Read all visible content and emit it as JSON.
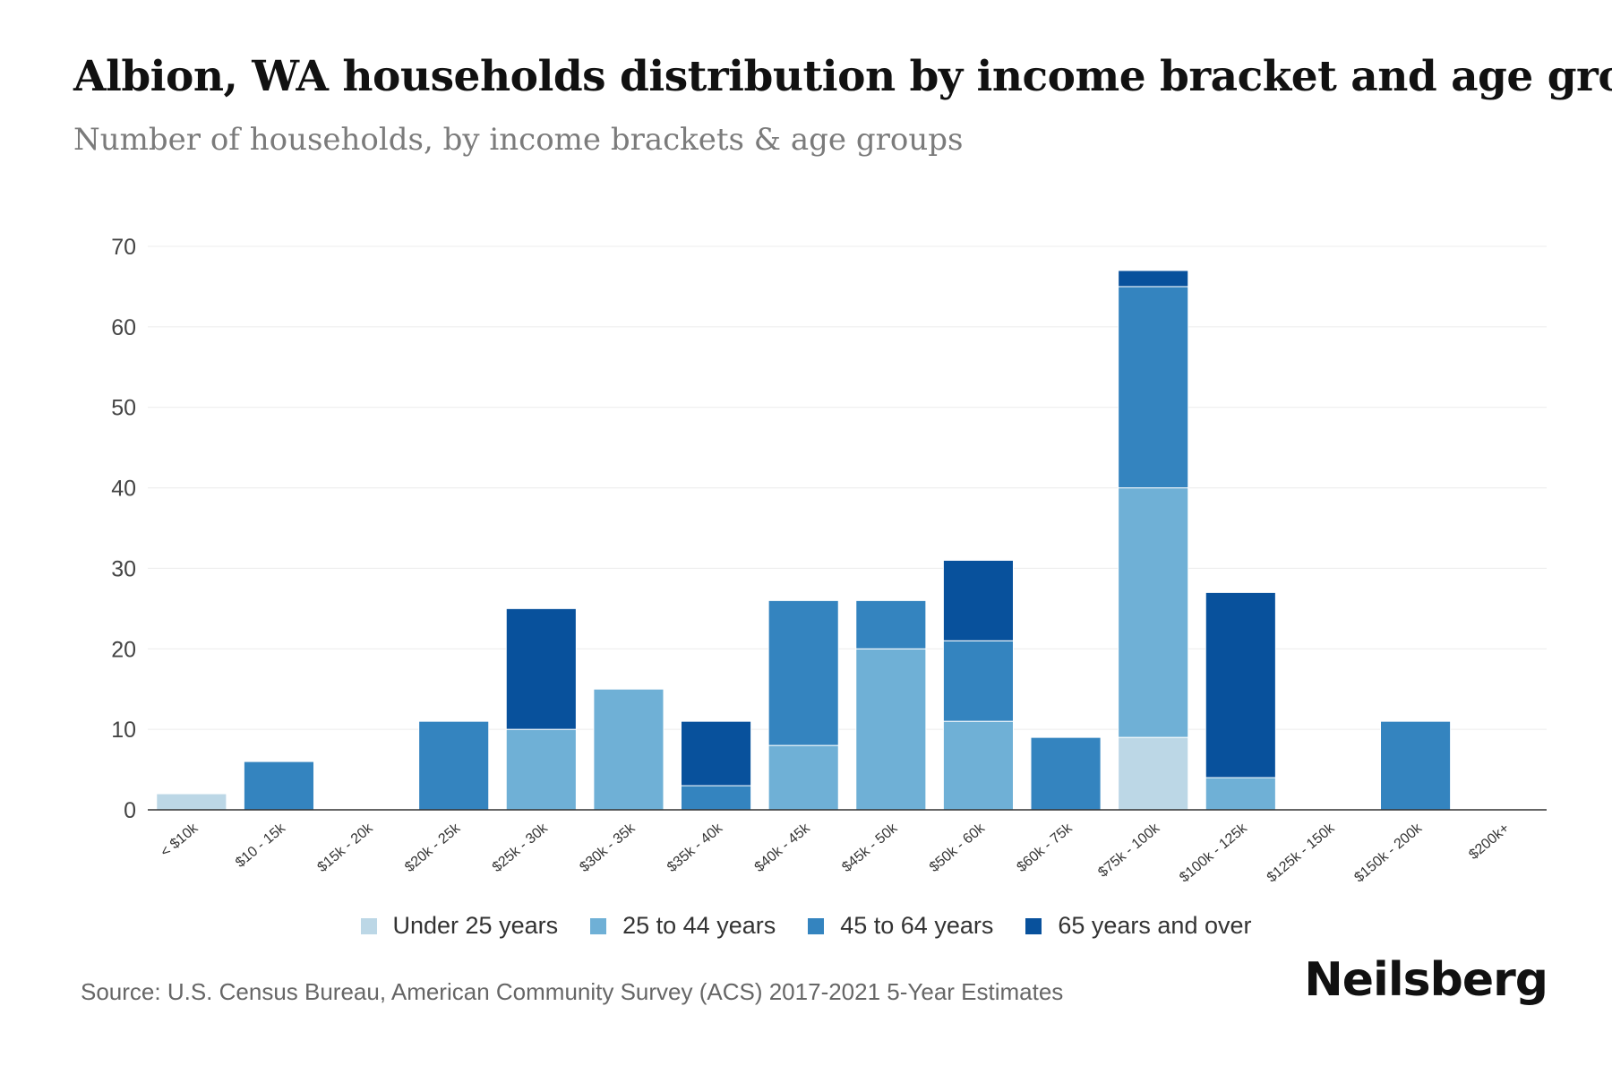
{
  "chart_data": {
    "type": "bar",
    "stacked": true,
    "title": "Albion, WA households distribution by income bracket and age group",
    "subtitle": "Number of households, by income brackets & age groups",
    "xlabel": "",
    "ylabel": "",
    "ylim": [
      0,
      70
    ],
    "yticks": [
      0,
      10,
      20,
      30,
      40,
      50,
      60,
      70
    ],
    "grid": true,
    "legend_position": "bottom",
    "categories": [
      "< $10k",
      "$10 - 15k",
      "$15k - 20k",
      "$20k - 25k",
      "$25k - 30k",
      "$30k - 35k",
      "$35k - 40k",
      "$40k - 45k",
      "$45k - 50k",
      "$50k - 60k",
      "$60k - 75k",
      "$75k - 100k",
      "$100k - 125k",
      "$125k - 150k",
      "$150k - 200k",
      "$200k+"
    ],
    "series": [
      {
        "name": "Under 25 years",
        "color": "#bcd7e6",
        "values": [
          2,
          0,
          0,
          0,
          0,
          0,
          0,
          0,
          0,
          0,
          0,
          9,
          0,
          0,
          0,
          0
        ]
      },
      {
        "name": "25 to 44 years",
        "color": "#6fb0d6",
        "values": [
          0,
          0,
          0,
          0,
          10,
          15,
          0,
          8,
          20,
          11,
          0,
          31,
          4,
          0,
          0,
          0
        ]
      },
      {
        "name": "45 to 64 years",
        "color": "#3484bf",
        "values": [
          0,
          6,
          0,
          11,
          0,
          0,
          3,
          18,
          6,
          10,
          9,
          25,
          0,
          0,
          11,
          0
        ]
      },
      {
        "name": "65 years and over",
        "color": "#08519c",
        "values": [
          0,
          0,
          0,
          0,
          15,
          0,
          8,
          0,
          0,
          10,
          0,
          2,
          23,
          0,
          0,
          0
        ]
      }
    ]
  },
  "source": "Source: U.S. Census Bureau, American Community Survey (ACS) 2017-2021 5-Year Estimates",
  "brand": "Neilsberg"
}
